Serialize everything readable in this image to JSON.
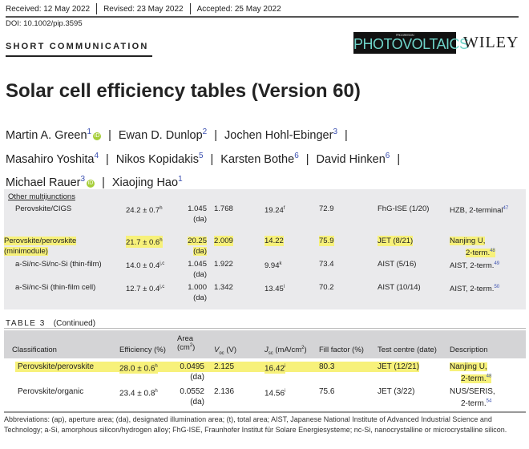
{
  "header": {
    "received": "Received: 12 May 2022",
    "revised": "Revised: 23 May 2022",
    "accepted": "Accepted: 25 May 2022",
    "doi": "DOI: 10.1002/pip.3595",
    "section": "SHORT COMMUNICATION",
    "journal_logo": "PHOTOVOLTAICS",
    "journal_logo_small": "PROGRESS IN",
    "publisher": "WILEY"
  },
  "title": "Solar cell efficiency tables (Version 60)",
  "authors": [
    {
      "name": "Martin A. Green",
      "aff": "1",
      "orcid": true
    },
    {
      "name": "Ewan D. Dunlop",
      "aff": "2"
    },
    {
      "name": "Jochen Hohl-Ebinger",
      "aff": "3"
    },
    {
      "name": "Masahiro Yoshita",
      "aff": "4"
    },
    {
      "name": "Nikos Kopidakis",
      "aff": "5"
    },
    {
      "name": "Karsten Bothe",
      "aff": "6"
    },
    {
      "name": "David Hinken",
      "aff": "6"
    },
    {
      "name": "Michael Rauer",
      "aff": "3",
      "orcid": true
    },
    {
      "name": "Xiaojing Hao",
      "aff": "1"
    }
  ],
  "author_separator": "|",
  "orcid_glyph": "iD",
  "colors": {
    "highlight": "#f7f17a",
    "panel": "#eaeaec",
    "header_band": "#d4d4d6",
    "reference": "#3a4fb0"
  },
  "table_excerpt": {
    "group": "Other multijunctions",
    "rows": [
      {
        "cls": "Perovskite/CIGS",
        "cls2": "",
        "eff": "24.2 ± 0.7",
        "eff_sup": "h",
        "area": "1.045",
        "area_type": "(da)",
        "voc": "1.768",
        "jsc": "19.24",
        "jsc_sup": "f",
        "ff": "72.9",
        "centre": "FhG-ISE (1/20)",
        "desc1": "HZB, 2-terminal",
        "desc2": "",
        "ref": "47",
        "highlighted": false
      },
      {
        "cls": "Perovskite/perovskite",
        "cls2": "(minimodule)",
        "eff": "21.7 ± 0.6",
        "eff_sup": "h",
        "area": "20.25",
        "area_type": "(da)",
        "voc": "2.009",
        "jsc": "14.22",
        "jsc_sup": "",
        "ff": "75.9",
        "centre": "JET (8/21)",
        "desc1": "Nanjing U,",
        "desc2": "2-term.",
        "ref": "48",
        "highlighted": true
      },
      {
        "cls": "a-Si/nc-Si/nc-Si (thin-film)",
        "cls2": "",
        "eff": "14.0 ± 0.4",
        "eff_sup": "j,c",
        "area": "1.045",
        "area_type": "(da)",
        "voc": "1.922",
        "jsc": "9.94",
        "jsc_sup": "k",
        "ff": "73.4",
        "centre": "AIST (5/16)",
        "desc1": "AIST, 2-term.",
        "desc2": "",
        "ref": "49",
        "highlighted": false
      },
      {
        "cls": "a-Si/nc-Si (thin-film cell)",
        "cls2": "",
        "eff": "12.7 ± 0.4",
        "eff_sup": "j,c",
        "area": "1.000",
        "area_type": "(da)",
        "voc": "1.342",
        "jsc": "13.45",
        "jsc_sup": "l",
        "ff": "70.2",
        "centre": "AIST (10/14)",
        "desc1": "AIST, 2-term.",
        "desc2": "",
        "ref": "50",
        "highlighted": false
      }
    ]
  },
  "table3": {
    "label": "TABLE 3",
    "caption": "(Continued)",
    "headers": {
      "cls": "Classification",
      "eff": "Efficiency (%)",
      "area1": "Area",
      "area2": "(cm",
      "area_sup": "2",
      "area3": ")",
      "voc": "V",
      "voc_sub": "oc",
      "voc_unit": " (V)",
      "jsc": "J",
      "jsc_sub": "sc",
      "jsc_unit": " (mA/cm",
      "jsc_sup": "2",
      "jsc_end": ")",
      "ff": "Fill factor (%)",
      "centre": "Test centre (date)",
      "desc": "Description"
    },
    "rows": [
      {
        "cls": "Perovskite/perovskite",
        "eff": "28.0 ± 0.6",
        "eff_sup": "h",
        "area": "0.0495",
        "area_type": "(da)",
        "voc": "2.125",
        "jsc": "16.42",
        "jsc_sup": "i",
        "ff": "80.3",
        "centre": "JET (12/21)",
        "desc1": "Nanjing U,",
        "desc2": "2-term.",
        "ref": "48",
        "highlighted": true
      },
      {
        "cls": "Perovskite/organic",
        "eff": "23.4 ± 0.8",
        "eff_sup": "h",
        "area": "0.0552",
        "area_type": "(da)",
        "voc": "2.136",
        "jsc": "14.56",
        "jsc_sup": "i",
        "ff": "75.6",
        "centre": "JET (3/22)",
        "desc1": "NUS/SERIS,",
        "desc2": "2-term.",
        "ref": "54",
        "highlighted": false
      }
    ]
  },
  "abbreviations": "Abbreviations: (ap), aperture area; (da), designated illumination area; (t), total area; AIST, Japanese National Institute of Advanced Industrial Science and Technology; a-Si, amorphous silicon/hydrogen alloy; FhG-ISE, Fraunhofer Institut für Solare Energiesysteme; nc-Si, nanocrystalline or microcrystalline silicon."
}
